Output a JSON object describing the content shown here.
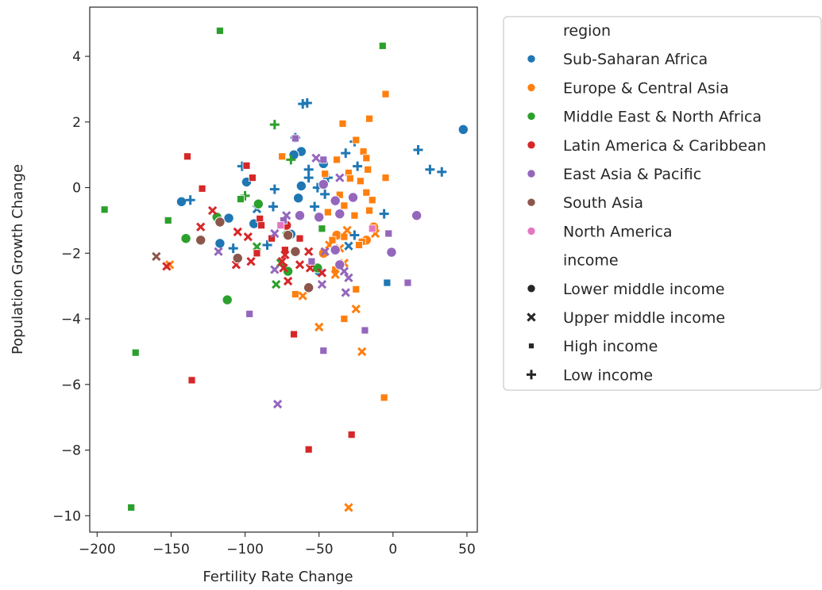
{
  "chart_data": {
    "type": "scatter",
    "xlabel": "Fertility Rate Change",
    "ylabel": "Population Growth Change",
    "xlim": [
      -205,
      57
    ],
    "ylim": [
      -10.5,
      5.5
    ],
    "xticks": [
      -200,
      -150,
      -100,
      -50,
      0,
      50
    ],
    "yticks": [
      -10,
      -8,
      -6,
      -4,
      -2,
      0,
      2,
      4
    ],
    "xtick_labels": [
      "−200",
      "−150",
      "−100",
      "−50",
      "0",
      "50"
    ],
    "ytick_labels": [
      "−10",
      "−8",
      "−6",
      "−4",
      "−2",
      "0",
      "2",
      "4"
    ],
    "grid": false,
    "legend_placement": "outside right",
    "legend": {
      "hue_title": "region",
      "style_title": "income",
      "regions": [
        {
          "name": "Sub-Saharan Africa",
          "color": "#1f77b4"
        },
        {
          "name": "Europe & Central Asia",
          "color": "#ff7f0e"
        },
        {
          "name": "Middle East & North Africa",
          "color": "#2ca02c"
        },
        {
          "name": "Latin America & Caribbean",
          "color": "#d62728"
        },
        {
          "name": "East Asia & Pacific",
          "color": "#9467bd"
        },
        {
          "name": "South Asia",
          "color": "#8c564b"
        },
        {
          "name": "North America",
          "color": "#e377c2"
        }
      ],
      "incomes": [
        {
          "name": "Lower middle income",
          "marker": "circle"
        },
        {
          "name": "Upper middle income",
          "marker": "x"
        },
        {
          "name": "High income",
          "marker": "square"
        },
        {
          "name": "Low income",
          "marker": "plus"
        }
      ]
    },
    "points": [
      {
        "x": 47.5,
        "y": 1.77,
        "region": 0,
        "income": 0
      },
      {
        "x": -62,
        "y": 1.1,
        "region": 0,
        "income": 0
      },
      {
        "x": -67,
        "y": 1.0,
        "region": 0,
        "income": 0
      },
      {
        "x": -47,
        "y": 0.73,
        "region": 0,
        "income": 0
      },
      {
        "x": -62,
        "y": 0.05,
        "region": 0,
        "income": 0
      },
      {
        "x": -99,
        "y": 0.17,
        "region": 0,
        "income": 0
      },
      {
        "x": -64,
        "y": -0.32,
        "region": 0,
        "income": 0
      },
      {
        "x": -143,
        "y": -0.43,
        "region": 0,
        "income": 0
      },
      {
        "x": -111,
        "y": -0.93,
        "region": 0,
        "income": 0
      },
      {
        "x": -117,
        "y": -1.7,
        "region": 0,
        "income": 0
      },
      {
        "x": -94,
        "y": -1.1,
        "region": 0,
        "income": 0
      },
      {
        "x": -69,
        "y": -1.42,
        "region": 0,
        "income": 0
      },
      {
        "x": -50,
        "y": -2.55,
        "region": 0,
        "income": 0
      },
      {
        "x": -58,
        "y": 2.58,
        "region": 0,
        "income": 3
      },
      {
        "x": -61,
        "y": 2.55,
        "region": 0,
        "income": 3
      },
      {
        "x": -66,
        "y": 1.52,
        "region": 0,
        "income": 3
      },
      {
        "x": -102,
        "y": 0.65,
        "region": 0,
        "income": 3
      },
      {
        "x": -57,
        "y": 0.55,
        "region": 0,
        "income": 3
      },
      {
        "x": -57,
        "y": 0.3,
        "region": 0,
        "income": 3
      },
      {
        "x": -44,
        "y": 0.3,
        "region": 0,
        "income": 3
      },
      {
        "x": -26,
        "y": 1.4,
        "region": 0,
        "income": 3
      },
      {
        "x": -32,
        "y": 1.05,
        "region": 0,
        "income": 3
      },
      {
        "x": -24,
        "y": 0.65,
        "region": 0,
        "income": 3
      },
      {
        "x": -51,
        "y": 0.0,
        "region": 0,
        "income": 3
      },
      {
        "x": -80,
        "y": -0.05,
        "region": 0,
        "income": 3
      },
      {
        "x": -46,
        "y": -0.2,
        "region": 0,
        "income": 3
      },
      {
        "x": -137,
        "y": -0.38,
        "region": 0,
        "income": 3
      },
      {
        "x": -53,
        "y": -0.58,
        "region": 0,
        "income": 3
      },
      {
        "x": -81,
        "y": -0.58,
        "region": 0,
        "income": 3
      },
      {
        "x": -6,
        "y": -0.8,
        "region": 0,
        "income": 3
      },
      {
        "x": 17,
        "y": 1.15,
        "region": 0,
        "income": 3
      },
      {
        "x": 25,
        "y": 0.55,
        "region": 0,
        "income": 3
      },
      {
        "x": 33,
        "y": 0.48,
        "region": 0,
        "income": 3
      },
      {
        "x": -108,
        "y": -1.85,
        "region": 0,
        "income": 3
      },
      {
        "x": -26,
        "y": -1.45,
        "region": 0,
        "income": 3
      },
      {
        "x": -85,
        "y": -1.75,
        "region": 0,
        "income": 3
      },
      {
        "x": -4,
        "y": -2.9,
        "region": 0,
        "income": 2
      },
      {
        "x": -92,
        "y": -0.65,
        "region": 0,
        "income": 1
      },
      {
        "x": -30,
        "y": -1.78,
        "region": 0,
        "income": 1
      },
      {
        "x": -13,
        "y": -1.2,
        "region": 1,
        "income": 0
      },
      {
        "x": -47,
        "y": -2.0,
        "region": 1,
        "income": 0
      },
      {
        "x": -18,
        "y": -1.6,
        "region": 1,
        "income": 0
      },
      {
        "x": -38,
        "y": -1.45,
        "region": 1,
        "income": 0
      },
      {
        "x": -5,
        "y": 2.85,
        "region": 1,
        "income": 2
      },
      {
        "x": -34,
        "y": 1.95,
        "region": 1,
        "income": 2
      },
      {
        "x": -16,
        "y": 2.1,
        "region": 1,
        "income": 2
      },
      {
        "x": -25,
        "y": 1.45,
        "region": 1,
        "income": 2
      },
      {
        "x": -20,
        "y": 1.1,
        "region": 1,
        "income": 2
      },
      {
        "x": -38,
        "y": 0.85,
        "region": 1,
        "income": 2
      },
      {
        "x": -18,
        "y": 0.9,
        "region": 1,
        "income": 2
      },
      {
        "x": -46,
        "y": 0.42,
        "region": 1,
        "income": 2
      },
      {
        "x": -30,
        "y": 0.45,
        "region": 1,
        "income": 2
      },
      {
        "x": -17,
        "y": 0.55,
        "region": 1,
        "income": 2
      },
      {
        "x": -29,
        "y": 0.28,
        "region": 1,
        "income": 2
      },
      {
        "x": -22,
        "y": 0.2,
        "region": 1,
        "income": 2
      },
      {
        "x": -5,
        "y": 0.3,
        "region": 1,
        "income": 2
      },
      {
        "x": -36,
        "y": -0.22,
        "region": 1,
        "income": 2
      },
      {
        "x": -27,
        "y": -0.28,
        "region": 1,
        "income": 2
      },
      {
        "x": -18,
        "y": -0.15,
        "region": 1,
        "income": 2
      },
      {
        "x": -14,
        "y": -0.38,
        "region": 1,
        "income": 2
      },
      {
        "x": -33,
        "y": -0.55,
        "region": 1,
        "income": 2
      },
      {
        "x": -44,
        "y": -0.75,
        "region": 1,
        "income": 2
      },
      {
        "x": -26,
        "y": -0.85,
        "region": 1,
        "income": 2
      },
      {
        "x": -16,
        "y": -0.7,
        "region": 1,
        "income": 2
      },
      {
        "x": -75,
        "y": 0.95,
        "region": 1,
        "income": 2
      },
      {
        "x": -41,
        "y": -1.6,
        "region": 1,
        "income": 2
      },
      {
        "x": -33,
        "y": -1.5,
        "region": 1,
        "income": 2
      },
      {
        "x": -21,
        "y": -1.65,
        "region": 1,
        "income": 2
      },
      {
        "x": -23,
        "y": -1.75,
        "region": 1,
        "income": 2
      },
      {
        "x": -39,
        "y": -2.5,
        "region": 1,
        "income": 2
      },
      {
        "x": -66,
        "y": -3.25,
        "region": 1,
        "income": 2
      },
      {
        "x": -25,
        "y": -3.1,
        "region": 1,
        "income": 2
      },
      {
        "x": -33,
        "y": -4.0,
        "region": 1,
        "income": 2
      },
      {
        "x": -6,
        "y": -6.4,
        "region": 1,
        "income": 2
      },
      {
        "x": -151,
        "y": -2.35,
        "region": 1,
        "income": 1
      },
      {
        "x": -30,
        "y": -9.75,
        "region": 1,
        "income": 1
      },
      {
        "x": -50,
        "y": -4.25,
        "region": 1,
        "income": 1
      },
      {
        "x": -25,
        "y": -3.7,
        "region": 1,
        "income": 1
      },
      {
        "x": -21,
        "y": -5.0,
        "region": 1,
        "income": 1
      },
      {
        "x": -61,
        "y": -3.3,
        "region": 1,
        "income": 1
      },
      {
        "x": -39,
        "y": -2.65,
        "region": 1,
        "income": 1
      },
      {
        "x": -33,
        "y": -2.3,
        "region": 1,
        "income": 1
      },
      {
        "x": -36,
        "y": -1.85,
        "region": 1,
        "income": 1
      },
      {
        "x": -12,
        "y": -1.4,
        "region": 1,
        "income": 1
      },
      {
        "x": -31,
        "y": -1.3,
        "region": 1,
        "income": 1
      },
      {
        "x": -43,
        "y": -1.75,
        "region": 1,
        "income": 1
      },
      {
        "x": -119,
        "y": -0.9,
        "region": 2,
        "income": 0
      },
      {
        "x": -140,
        "y": -1.55,
        "region": 2,
        "income": 0
      },
      {
        "x": -91,
        "y": -0.5,
        "region": 2,
        "income": 0
      },
      {
        "x": -71,
        "y": -2.55,
        "region": 2,
        "income": 0
      },
      {
        "x": -51,
        "y": -2.45,
        "region": 2,
        "income": 0
      },
      {
        "x": -112,
        "y": -3.42,
        "region": 2,
        "income": 0
      },
      {
        "x": -80,
        "y": 1.92,
        "region": 2,
        "income": 3
      },
      {
        "x": -69,
        "y": 0.85,
        "region": 2,
        "income": 3
      },
      {
        "x": -100,
        "y": -0.25,
        "region": 2,
        "income": 3
      },
      {
        "x": -117,
        "y": 4.78,
        "region": 2,
        "income": 2
      },
      {
        "x": -7,
        "y": 4.32,
        "region": 2,
        "income": 2
      },
      {
        "x": -195,
        "y": -0.67,
        "region": 2,
        "income": 2
      },
      {
        "x": -103,
        "y": -0.35,
        "region": 2,
        "income": 2
      },
      {
        "x": -152,
        "y": -1.0,
        "region": 2,
        "income": 2
      },
      {
        "x": -48,
        "y": -1.25,
        "region": 2,
        "income": 2
      },
      {
        "x": -174,
        "y": -5.03,
        "region": 2,
        "income": 2
      },
      {
        "x": -177,
        "y": -9.75,
        "region": 2,
        "income": 2
      },
      {
        "x": -92,
        "y": -1.8,
        "region": 2,
        "income": 1
      },
      {
        "x": -79,
        "y": -2.95,
        "region": 2,
        "income": 1
      },
      {
        "x": -72,
        "y": -1.3,
        "region": 2,
        "income": 1
      },
      {
        "x": -76,
        "y": -2.3,
        "region": 2,
        "income": 1
      },
      {
        "x": -72,
        "y": -1.15,
        "region": 3,
        "income": 0
      },
      {
        "x": -139,
        "y": 0.95,
        "region": 3,
        "income": 2
      },
      {
        "x": -129,
        "y": -0.03,
        "region": 3,
        "income": 2
      },
      {
        "x": -99,
        "y": 0.67,
        "region": 3,
        "income": 2
      },
      {
        "x": -95,
        "y": 0.3,
        "region": 3,
        "income": 2
      },
      {
        "x": -90,
        "y": -0.95,
        "region": 3,
        "income": 2
      },
      {
        "x": -89,
        "y": -1.15,
        "region": 3,
        "income": 2
      },
      {
        "x": -82,
        "y": -1.55,
        "region": 3,
        "income": 2
      },
      {
        "x": -73,
        "y": -1.9,
        "region": 3,
        "income": 2
      },
      {
        "x": -63,
        "y": -1.55,
        "region": 3,
        "income": 2
      },
      {
        "x": -92,
        "y": -2.0,
        "region": 3,
        "income": 2
      },
      {
        "x": -67,
        "y": -4.47,
        "region": 3,
        "income": 2
      },
      {
        "x": -136,
        "y": -5.87,
        "region": 3,
        "income": 2
      },
      {
        "x": -57,
        "y": -7.98,
        "region": 3,
        "income": 2
      },
      {
        "x": -28,
        "y": -7.53,
        "region": 3,
        "income": 2
      },
      {
        "x": -122,
        "y": -0.7,
        "region": 3,
        "income": 1
      },
      {
        "x": -130,
        "y": -1.2,
        "region": 3,
        "income": 1
      },
      {
        "x": -105,
        "y": -1.35,
        "region": 3,
        "income": 1
      },
      {
        "x": -98,
        "y": -1.5,
        "region": 3,
        "income": 1
      },
      {
        "x": -106,
        "y": -2.35,
        "region": 3,
        "income": 1
      },
      {
        "x": -96,
        "y": -2.25,
        "region": 3,
        "income": 1
      },
      {
        "x": -75,
        "y": -2.25,
        "region": 3,
        "income": 1
      },
      {
        "x": -63,
        "y": -2.35,
        "region": 3,
        "income": 1
      },
      {
        "x": -74,
        "y": -2.45,
        "region": 3,
        "income": 1
      },
      {
        "x": -56,
        "y": -2.45,
        "region": 3,
        "income": 1
      },
      {
        "x": -48,
        "y": -2.6,
        "region": 3,
        "income": 1
      },
      {
        "x": -57,
        "y": -1.95,
        "region": 3,
        "income": 1
      },
      {
        "x": -73,
        "y": -2.05,
        "region": 3,
        "income": 1
      },
      {
        "x": -153,
        "y": -2.4,
        "region": 3,
        "income": 1
      },
      {
        "x": -71,
        "y": -2.85,
        "region": 3,
        "income": 1
      },
      {
        "x": -50,
        "y": -0.9,
        "region": 4,
        "income": 0
      },
      {
        "x": -47,
        "y": 0.1,
        "region": 4,
        "income": 0
      },
      {
        "x": -39,
        "y": -0.4,
        "region": 4,
        "income": 0
      },
      {
        "x": -36,
        "y": -0.8,
        "region": 4,
        "income": 0
      },
      {
        "x": -27,
        "y": -0.3,
        "region": 4,
        "income": 0
      },
      {
        "x": -63,
        "y": -0.85,
        "region": 4,
        "income": 0
      },
      {
        "x": -39,
        "y": -1.9,
        "region": 4,
        "income": 0
      },
      {
        "x": -36,
        "y": -2.35,
        "region": 4,
        "income": 0
      },
      {
        "x": 16,
        "y": -0.85,
        "region": 4,
        "income": 0
      },
      {
        "x": -1,
        "y": -1.97,
        "region": 4,
        "income": 0
      },
      {
        "x": -66,
        "y": 1.5,
        "region": 4,
        "income": 2
      },
      {
        "x": -47,
        "y": 0.85,
        "region": 4,
        "income": 2
      },
      {
        "x": -74,
        "y": -1.0,
        "region": 4,
        "income": 2
      },
      {
        "x": -97,
        "y": -3.85,
        "region": 4,
        "income": 2
      },
      {
        "x": -47,
        "y": -4.97,
        "region": 4,
        "income": 2
      },
      {
        "x": -19,
        "y": -4.35,
        "region": 4,
        "income": 2
      },
      {
        "x": 10,
        "y": -2.9,
        "region": 4,
        "income": 2
      },
      {
        "x": -3,
        "y": -1.4,
        "region": 4,
        "income": 2
      },
      {
        "x": -55,
        "y": -2.25,
        "region": 4,
        "income": 2
      },
      {
        "x": -52,
        "y": 0.9,
        "region": 4,
        "income": 1
      },
      {
        "x": -36,
        "y": 0.3,
        "region": 4,
        "income": 1
      },
      {
        "x": -72,
        "y": -0.85,
        "region": 4,
        "income": 1
      },
      {
        "x": -80,
        "y": -1.4,
        "region": 4,
        "income": 1
      },
      {
        "x": -118,
        "y": -1.95,
        "region": 4,
        "income": 1
      },
      {
        "x": -80,
        "y": -2.5,
        "region": 4,
        "income": 1
      },
      {
        "x": -48,
        "y": -2.95,
        "region": 4,
        "income": 1
      },
      {
        "x": -33,
        "y": -2.55,
        "region": 4,
        "income": 1
      },
      {
        "x": -30,
        "y": -2.75,
        "region": 4,
        "income": 1
      },
      {
        "x": -32,
        "y": -3.2,
        "region": 4,
        "income": 1
      },
      {
        "x": -46,
        "y": -1.95,
        "region": 4,
        "income": 1
      },
      {
        "x": -78,
        "y": -6.6,
        "region": 4,
        "income": 1
      },
      {
        "x": -117,
        "y": -1.05,
        "region": 5,
        "income": 0
      },
      {
        "x": -130,
        "y": -1.6,
        "region": 5,
        "income": 0
      },
      {
        "x": -105,
        "y": -2.15,
        "region": 5,
        "income": 0
      },
      {
        "x": -66,
        "y": -1.95,
        "region": 5,
        "income": 0
      },
      {
        "x": -57,
        "y": -3.05,
        "region": 5,
        "income": 0
      },
      {
        "x": -71,
        "y": -1.45,
        "region": 5,
        "income": 0
      },
      {
        "x": -160,
        "y": -2.1,
        "region": 5,
        "income": 1
      },
      {
        "x": -14,
        "y": -1.25,
        "region": 6,
        "income": 2
      },
      {
        "x": -76,
        "y": -1.15,
        "region": 6,
        "income": 2
      }
    ]
  }
}
